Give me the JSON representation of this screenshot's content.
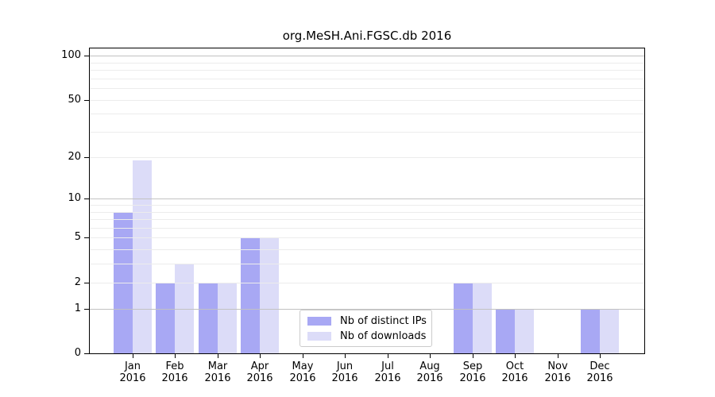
{
  "chart_data": {
    "type": "bar",
    "title": "org.MeSH.Ani.FGSC.db 2016",
    "scale": "log1p",
    "grid": true,
    "legend_position": "lower-center",
    "ylim": [
      0,
      112
    ],
    "yticks": [
      0,
      1,
      2,
      5,
      10,
      20,
      50,
      100
    ],
    "minor_gridlines": [
      2,
      3,
      4,
      5,
      6,
      7,
      8,
      9,
      20,
      30,
      40,
      50,
      60,
      70,
      80,
      90
    ],
    "major_gridlines": [
      1,
      10,
      100
    ],
    "categories": [
      {
        "month": "Jan",
        "year": "2016"
      },
      {
        "month": "Feb",
        "year": "2016"
      },
      {
        "month": "Mar",
        "year": "2016"
      },
      {
        "month": "Apr",
        "year": "2016"
      },
      {
        "month": "May",
        "year": "2016"
      },
      {
        "month": "Jun",
        "year": "2016"
      },
      {
        "month": "Jul",
        "year": "2016"
      },
      {
        "month": "Aug",
        "year": "2016"
      },
      {
        "month": "Sep",
        "year": "2016"
      },
      {
        "month": "Oct",
        "year": "2016"
      },
      {
        "month": "Nov",
        "year": "2016"
      },
      {
        "month": "Dec",
        "year": "2016"
      }
    ],
    "series": [
      {
        "name": "Nb of distinct IPs",
        "color": "#a8a8f4",
        "values": [
          8,
          2,
          2,
          5,
          0,
          0,
          0,
          0,
          2,
          1,
          0,
          1
        ]
      },
      {
        "name": "Nb of downloads",
        "color": "#dcdcf8",
        "values": [
          19,
          3,
          2,
          5,
          0,
          0,
          0,
          0,
          2,
          1,
          0,
          1
        ]
      }
    ]
  },
  "colors": {
    "background": "#ffffff",
    "spine": "#000000",
    "major_grid": "#c2c2c2",
    "minor_grid": "#ececec",
    "legend_border": "#cbcbcb",
    "text": "#000000"
  }
}
